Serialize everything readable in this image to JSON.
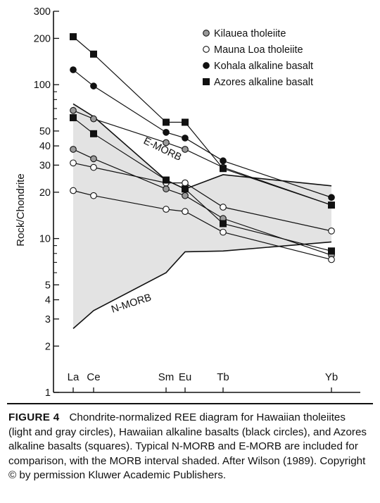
{
  "chart_data": {
    "type": "line",
    "ylabel": "Rock/Chondrite",
    "yscale": "log",
    "ylim": [
      1,
      300
    ],
    "y_ticks": [
      "1",
      "2",
      "3",
      "4",
      "5",
      "10",
      "20",
      "30",
      "40",
      "50",
      "100",
      "200",
      "300"
    ],
    "categories": [
      "La",
      "Ce",
      "Sm",
      "Eu",
      "Tb",
      "Yb"
    ],
    "series": [
      {
        "name": "Kilauea tholeiite",
        "marker": "circle",
        "fill": "#9a9a9a",
        "points": [
          [
            0,
            68
          ],
          [
            0,
            38
          ],
          [
            1,
            60
          ],
          [
            1,
            33
          ],
          [
            2,
            42
          ],
          [
            2,
            21
          ],
          [
            3,
            38
          ],
          [
            3,
            19
          ],
          [
            4,
            29
          ],
          [
            4,
            13.5
          ],
          [
            5,
            16.5
          ],
          [
            5,
            7.8
          ]
        ]
      },
      {
        "name": "Mauna Loa tholeiite",
        "marker": "circle",
        "fill": "#ffffff",
        "points": [
          [
            0,
            31
          ],
          [
            0,
            20.5
          ],
          [
            1,
            29
          ],
          [
            1,
            19
          ],
          [
            2,
            23
          ],
          [
            2,
            15.5
          ],
          [
            3,
            23
          ],
          [
            3,
            15
          ],
          [
            4,
            16
          ],
          [
            4,
            11
          ],
          [
            5,
            11.2
          ],
          [
            5,
            7.3
          ]
        ]
      },
      {
        "name": "Kohala alkaline basalt",
        "marker": "circle",
        "fill": "#111111",
        "points": [
          [
            0,
            125
          ],
          [
            1,
            98
          ],
          [
            2,
            49
          ],
          [
            3,
            45
          ],
          [
            4,
            32
          ],
          [
            5,
            18.5
          ]
        ]
      },
      {
        "name": "Azores alkaline basalt",
        "marker": "square",
        "fill": "#111111",
        "points": [
          [
            0,
            205
          ],
          [
            0,
            61
          ],
          [
            1,
            158
          ],
          [
            1,
            48
          ],
          [
            2,
            57
          ],
          [
            2,
            24
          ],
          [
            3,
            57
          ],
          [
            3,
            21
          ],
          [
            4,
            28.5
          ],
          [
            4,
            12.5
          ],
          [
            5,
            16.5
          ],
          [
            5,
            8.3
          ]
        ]
      }
    ],
    "lines": [
      [
        [
          0,
          68
        ],
        [
          1,
          60
        ],
        [
          2,
          42
        ],
        [
          3,
          38
        ],
        [
          4,
          29
        ],
        [
          5,
          16.5
        ]
      ],
      [
        [
          0,
          38
        ],
        [
          1,
          33
        ],
        [
          2,
          21
        ],
        [
          3,
          19
        ],
        [
          4,
          13.5
        ],
        [
          5,
          7.8
        ]
      ],
      [
        [
          0,
          31
        ],
        [
          1,
          29
        ],
        [
          2,
          23
        ],
        [
          3,
          23
        ],
        [
          4,
          16
        ],
        [
          5,
          11.2
        ]
      ],
      [
        [
          0,
          20.5
        ],
        [
          1,
          19
        ],
        [
          2,
          15.5
        ],
        [
          3,
          15
        ],
        [
          4,
          11
        ],
        [
          5,
          7.3
        ]
      ],
      [
        [
          0,
          125
        ],
        [
          1,
          98
        ],
        [
          2,
          49
        ],
        [
          3,
          45
        ],
        [
          4,
          32
        ],
        [
          5,
          18.5
        ]
      ],
      [
        [
          0,
          205
        ],
        [
          1,
          158
        ],
        [
          2,
          57
        ],
        [
          3,
          57
        ],
        [
          4,
          28.5
        ],
        [
          5,
          16.5
        ]
      ],
      [
        [
          0,
          61
        ],
        [
          1,
          48
        ],
        [
          2,
          24
        ],
        [
          3,
          21
        ],
        [
          4,
          12.5
        ],
        [
          5,
          8.3
        ]
      ]
    ],
    "morb_band": {
      "label": "MORB interval",
      "color": "#e3e3e3",
      "upper": [
        [
          0,
          75
        ],
        [
          1,
          62
        ],
        [
          2,
          24
        ],
        [
          3,
          21
        ],
        [
          4,
          26
        ],
        [
          5,
          22
        ]
      ],
      "lower": [
        [
          0,
          2.6
        ],
        [
          1,
          3.4
        ],
        [
          2,
          6
        ],
        [
          3,
          8.2
        ],
        [
          4,
          8.3
        ],
        [
          5,
          9.5
        ]
      ]
    },
    "annotations": [
      {
        "text": "E-MORB",
        "at": [
          2,
          35
        ]
      },
      {
        "text": "N-MORB",
        "at": [
          1.4,
          3.7
        ]
      }
    ],
    "legend_position": "top-right",
    "grid": false
  },
  "caption": {
    "label": "FIGURE 4",
    "text": "Chondrite-normalized REE diagram for Hawaiian tholeiites (light and gray circles), Hawaiian alkaline basalts (black circles), and Azores alkaline basalts (squares). Typical N-MORB and E-MORB are included for comparison, with the MORB interval shaded. After Wilson (1989). Copyright © by permission Kluwer Academic Publishers."
  }
}
